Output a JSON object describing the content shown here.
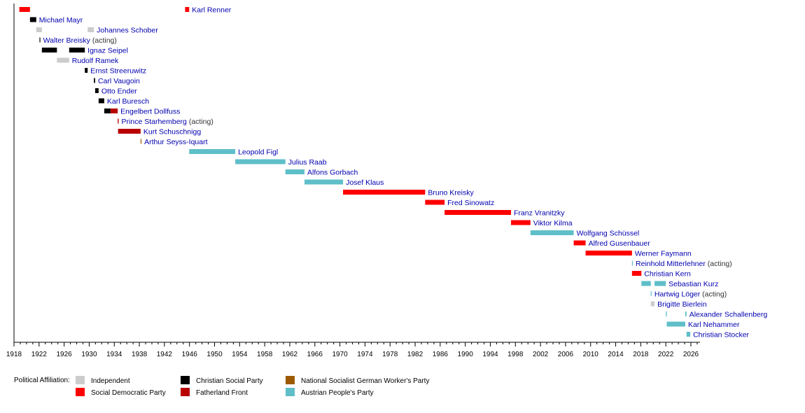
{
  "chart_data": {
    "type": "timeline",
    "xlim": [
      1918,
      2026
    ],
    "x_ticks": [
      1918,
      1922,
      1926,
      1930,
      1934,
      1938,
      1942,
      1946,
      1950,
      1954,
      1958,
      1962,
      1966,
      1970,
      1974,
      1978,
      1982,
      1986,
      1990,
      1994,
      1998,
      2002,
      2006,
      2010,
      2014,
      2018,
      2022,
      2026
    ],
    "legend_title": "Political Affiliation:",
    "legend_placement": "bottom-left",
    "parties": [
      {
        "key": "ind",
        "name": "Independent",
        "color": "#cccccc"
      },
      {
        "key": "spd",
        "name": "Social Democratic Party",
        "color": "#ff0000"
      },
      {
        "key": "csp",
        "name": "Christian Social Party",
        "color": "#000000"
      },
      {
        "key": "ff",
        "name": "Fatherland Front",
        "color": "#b80000"
      },
      {
        "key": "ns",
        "name": "National Socialist German Worker's Party",
        "color": "#9c5a00"
      },
      {
        "key": "ovp",
        "name": "Austrian People's Party",
        "color": "#5fbfc8"
      }
    ],
    "rows": [
      {
        "name": "Karl Renner",
        "note": "",
        "terms": [
          [
            1918.85,
            1920.55,
            "spd"
          ],
          [
            1945.3,
            1945.95,
            "spd"
          ]
        ]
      },
      {
        "name": "Michael Mayr",
        "note": "",
        "terms": [
          [
            1920.55,
            1921.55,
            "csp"
          ]
        ]
      },
      {
        "name": "Johannes Schober",
        "note": "",
        "terms": [
          [
            1921.55,
            1922.45,
            "ind"
          ],
          [
            1929.75,
            1930.75,
            "ind"
          ]
        ]
      },
      {
        "name": "Walter Breisky",
        "note": "(acting)",
        "terms": [
          [
            1922.07,
            1922.12,
            "csp"
          ]
        ]
      },
      {
        "name": "Ignaz Seipel",
        "note": "",
        "terms": [
          [
            1922.45,
            1924.85,
            "csp"
          ],
          [
            1926.8,
            1929.3,
            "csp"
          ]
        ]
      },
      {
        "name": "Rudolf Ramek",
        "note": "",
        "terms": [
          [
            1924.85,
            1926.8,
            "ind"
          ]
        ]
      },
      {
        "name": "Ernst Streeruwitz",
        "note": "",
        "terms": [
          [
            1929.3,
            1929.75,
            "csp"
          ]
        ]
      },
      {
        "name": "Carl Vaugoin",
        "note": "",
        "terms": [
          [
            1930.75,
            1930.95,
            "csp"
          ]
        ]
      },
      {
        "name": "Otto Ender",
        "note": "",
        "terms": [
          [
            1930.95,
            1931.5,
            "csp"
          ]
        ]
      },
      {
        "name": "Karl Buresch",
        "note": "",
        "terms": [
          [
            1931.5,
            1932.4,
            "csp"
          ]
        ]
      },
      {
        "name": "Engelbert Dollfuss",
        "note": "",
        "terms": [
          [
            1932.4,
            1933.4,
            "csp"
          ],
          [
            1933.4,
            1934.55,
            "ff"
          ]
        ]
      },
      {
        "name": "Prince Starhemberg",
        "note": "(acting)",
        "terms": [
          [
            1934.55,
            1934.7,
            "ff"
          ]
        ]
      },
      {
        "name": "Kurt Schuschnigg",
        "note": "",
        "terms": [
          [
            1934.6,
            1938.2,
            "ff"
          ]
        ]
      },
      {
        "name": "Arthur Seyss-Iquart",
        "note": "",
        "terms": [
          [
            1938.2,
            1938.25,
            "ns"
          ]
        ]
      },
      {
        "name": "Leopold Figl",
        "note": "",
        "terms": [
          [
            1945.95,
            1953.3,
            "ovp"
          ]
        ]
      },
      {
        "name": "Julius Raab",
        "note": "",
        "terms": [
          [
            1953.3,
            1961.3,
            "ovp"
          ]
        ]
      },
      {
        "name": "Alfons Gorbach",
        "note": "",
        "terms": [
          [
            1961.3,
            1964.35,
            "ovp"
          ]
        ]
      },
      {
        "name": "Josef Klaus",
        "note": "",
        "terms": [
          [
            1964.35,
            1970.5,
            "ovp"
          ]
        ]
      },
      {
        "name": "Bruno Kreisky",
        "note": "",
        "terms": [
          [
            1970.5,
            1983.6,
            "spd"
          ]
        ]
      },
      {
        "name": "Fred Sinowatz",
        "note": "",
        "terms": [
          [
            1983.6,
            1986.7,
            "spd"
          ]
        ]
      },
      {
        "name": "Franz Vranitzky",
        "note": "",
        "terms": [
          [
            1986.7,
            1997.3,
            "spd"
          ]
        ]
      },
      {
        "name": "Viktor Kilma",
        "note": "",
        "terms": [
          [
            1997.3,
            2000.4,
            "spd"
          ]
        ]
      },
      {
        "name": "Wolfgang Schüssel",
        "note": "",
        "terms": [
          [
            2000.4,
            2007.3,
            "ovp"
          ]
        ]
      },
      {
        "name": "Alfred Gusenbauer",
        "note": "",
        "terms": [
          [
            2007.3,
            2009.2,
            "spd"
          ]
        ]
      },
      {
        "name": "Werner Faymann",
        "note": "",
        "terms": [
          [
            2009.2,
            2016.6,
            "spd"
          ]
        ]
      },
      {
        "name": "Reinhold Mitterlehner",
        "note": "(acting)",
        "terms": [
          [
            2016.6,
            2016.7,
            "ovp"
          ]
        ]
      },
      {
        "name": "Christian Kern",
        "note": "",
        "terms": [
          [
            2016.6,
            2018.1,
            "spd"
          ]
        ]
      },
      {
        "name": "Sebastian Kurz",
        "note": "",
        "terms": [
          [
            2018.1,
            2019.6,
            "ovp"
          ],
          [
            2020.2,
            2022.0,
            "ovp"
          ]
        ]
      },
      {
        "name": "Hartwig Löger",
        "note": "(acting)",
        "terms": [
          [
            2019.6,
            2019.7,
            "ovp"
          ]
        ]
      },
      {
        "name": "Brigitte Bierlein",
        "note": "",
        "terms": [
          [
            2019.6,
            2020.2,
            "ind"
          ]
        ]
      },
      {
        "name": "Alexander Schallenberg",
        "note": "",
        "terms": [
          [
            2022.0,
            2022.15,
            "ovp"
          ],
          [
            2025.1,
            2025.3,
            "ovp"
          ]
        ]
      },
      {
        "name": "Karl Nehammer",
        "note": "",
        "terms": [
          [
            2022.15,
            2025.1,
            "ovp"
          ]
        ]
      },
      {
        "name": "Christian Stocker",
        "note": "",
        "terms": [
          [
            2025.3,
            2025.9,
            "ovp"
          ]
        ]
      }
    ]
  }
}
